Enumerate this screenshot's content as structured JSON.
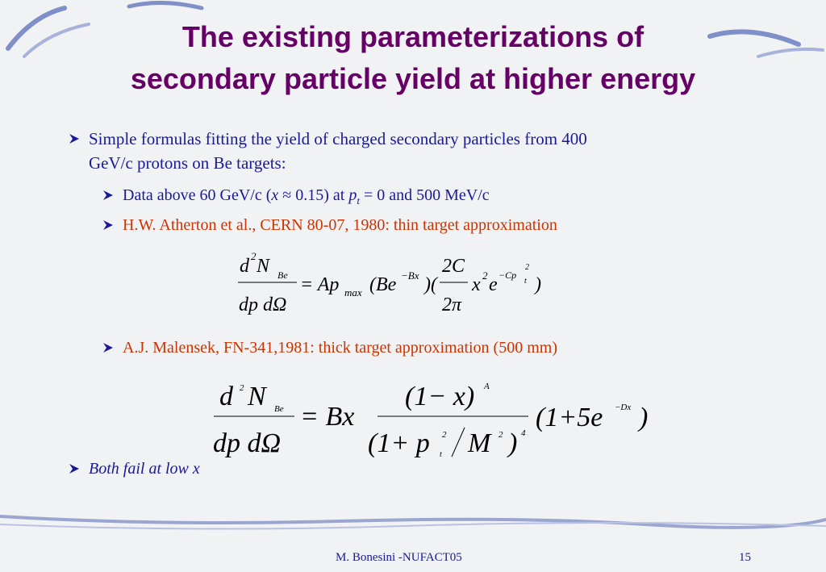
{
  "title": [
    "The existing parameterizations of",
    "secondary particle yield  at higher energy"
  ],
  "bullets": [
    {
      "text": [
        "Simple formulas fitting the yield of charged secondary particles from 400",
        "GeV/c protons on Be targets:"
      ]
    },
    {
      "runs": [
        "Data above 60 GeV/c (",
        "x",
        " ≈ 0.15) at ",
        "p",
        "t",
        " = 0 and 500 MeV/c"
      ]
    },
    {
      "text": "H.W. Atherton et al., CERN 80-07, 1980: thin target approximation"
    },
    {
      "text": "A.J. Malensek, FN-341,1981: thick target approximation (500 mm)"
    },
    {
      "text": "Both fail at low x"
    }
  ],
  "formulas": [
    {
      "pieces": [
        "d",
        "2",
        "N",
        "Be",
        "dp dΩ",
        "= Ap",
        "max",
        "(Be",
        "−Bx",
        ")(",
        "2C",
        "2π",
        "x",
        "2",
        "e",
        "−Cp",
        "t",
        "2",
        ")"
      ]
    },
    {
      "pieces": [
        "d",
        "2",
        "N",
        "Be",
        "dp dΩ",
        "= Bx",
        "(1− x)",
        "A",
        "(1+ p",
        "2",
        "t",
        "M",
        "2",
        ")",
        "4",
        "(1+5e",
        "−Dx",
        ")"
      ]
    }
  ],
  "footer": {
    "author": "M. Bonesini -NUFACT05",
    "page": "15"
  }
}
